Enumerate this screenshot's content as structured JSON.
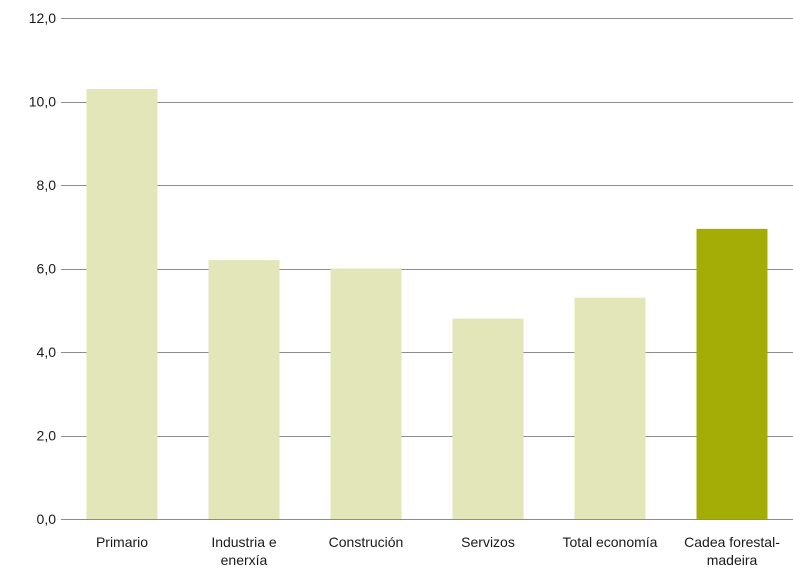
{
  "chart_data": {
    "type": "bar",
    "categories": [
      [
        "Primario"
      ],
      [
        "Industria e",
        "enerxía"
      ],
      [
        "Construción"
      ],
      [
        "Servizos"
      ],
      [
        "Total economía"
      ],
      [
        "Cadea forestal-",
        "madeira"
      ]
    ],
    "values": [
      10.3,
      6.2,
      6.0,
      4.8,
      5.3,
      6.95
    ],
    "ylim": [
      0,
      12
    ],
    "yticks": [
      0,
      2,
      4,
      6,
      8,
      10,
      12
    ],
    "tick_format": "one-decimal-comma",
    "grid": true,
    "legend": "none",
    "colors": {
      "bar": "#e2e6b8",
      "highlight": "#a4ad06",
      "grid": "#8c8c8c"
    },
    "highlight_index": 5
  }
}
